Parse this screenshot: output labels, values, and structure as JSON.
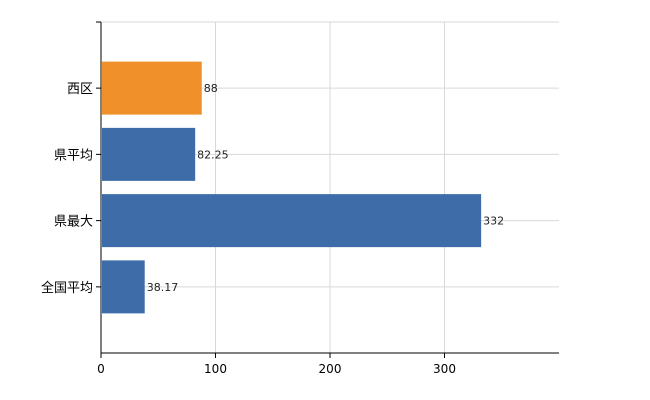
{
  "chart_data": {
    "type": "bar",
    "orientation": "horizontal",
    "categories": [
      "西区",
      "県平均",
      "県最大",
      "全国平均"
    ],
    "values": [
      88,
      82.25,
      332,
      38.17
    ],
    "data_labels": [
      "88",
      "82.25",
      "332",
      "38.17"
    ],
    "bar_colors": [
      "#f0902a",
      "#3d6ca8",
      "#3d6ca8",
      "#3d6ca8"
    ],
    "title": "",
    "xlabel": "",
    "ylabel": "",
    "xlim": [
      0,
      400
    ],
    "x_ticks": [
      0,
      100,
      200,
      300
    ],
    "x_tick_labels": [
      "0",
      "100",
      "200",
      "300"
    ],
    "grid": true,
    "legend": "none"
  }
}
